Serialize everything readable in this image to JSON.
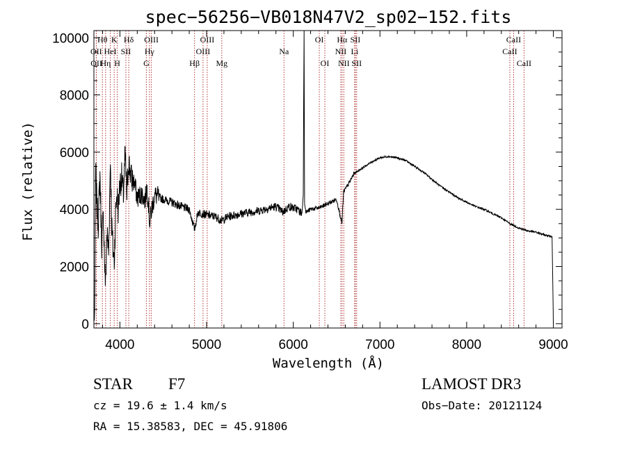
{
  "chart_data": {
    "type": "line",
    "title": "spec−56256−VB018N47V2_sp02−152.fits",
    "xlabel": "Wavelength (Å)",
    "ylabel": "Flux (relative)",
    "xlim": [
      3700,
      9100
    ],
    "ylim": [
      -150,
      10250
    ],
    "x_ticks": [
      4000,
      5000,
      6000,
      7000,
      8000,
      9000
    ],
    "y_ticks": [
      0,
      2000,
      4000,
      6000,
      8000,
      10000
    ],
    "series": [
      {
        "name": "flux",
        "anchors": [
          [
            3705,
            0
          ],
          [
            3712,
            1500
          ],
          [
            3720,
            5500
          ],
          [
            3735,
            4100
          ],
          [
            3750,
            3500
          ],
          [
            3770,
            5200
          ],
          [
            3790,
            2800
          ],
          [
            3810,
            3800
          ],
          [
            3825,
            2000
          ],
          [
            3835,
            1300
          ],
          [
            3850,
            3200
          ],
          [
            3870,
            2500
          ],
          [
            3890,
            5800
          ],
          [
            3905,
            3500
          ],
          [
            3920,
            2600
          ],
          [
            3935,
            2200
          ],
          [
            3950,
            3800
          ],
          [
            3965,
            4600
          ],
          [
            3980,
            4000
          ],
          [
            4000,
            4900
          ],
          [
            4020,
            5100
          ],
          [
            4040,
            4500
          ],
          [
            4060,
            5900
          ],
          [
            4080,
            4500
          ],
          [
            4100,
            5700
          ],
          [
            4130,
            5100
          ],
          [
            4170,
            4900
          ],
          [
            4200,
            4400
          ],
          [
            4250,
            4550
          ],
          [
            4290,
            4300
          ],
          [
            4310,
            4800
          ],
          [
            4330,
            4200
          ],
          [
            4345,
            3500
          ],
          [
            4360,
            3900
          ],
          [
            4400,
            4500
          ],
          [
            4500,
            4350
          ],
          [
            4600,
            4250
          ],
          [
            4700,
            4100
          ],
          [
            4800,
            4000
          ],
          [
            4861,
            3300
          ],
          [
            4900,
            3900
          ],
          [
            5000,
            3800
          ],
          [
            5100,
            3750
          ],
          [
            5175,
            3600
          ],
          [
            5250,
            3750
          ],
          [
            5400,
            3850
          ],
          [
            5600,
            3950
          ],
          [
            5800,
            4100
          ],
          [
            5880,
            3900
          ],
          [
            5950,
            4100
          ],
          [
            6050,
            4000
          ],
          [
            6100,
            3850
          ],
          [
            6115,
            4500
          ],
          [
            6120,
            7800
          ],
          [
            6125,
            10250
          ],
          [
            6130,
            4200
          ],
          [
            6145,
            3900
          ],
          [
            6200,
            4000
          ],
          [
            6300,
            4050
          ],
          [
            6400,
            4200
          ],
          [
            6500,
            4350
          ],
          [
            6562,
            3500
          ],
          [
            6580,
            4600
          ],
          [
            6650,
            4950
          ],
          [
            6700,
            5250
          ],
          [
            6800,
            5450
          ],
          [
            6900,
            5650
          ],
          [
            7000,
            5800
          ],
          [
            7100,
            5850
          ],
          [
            7200,
            5800
          ],
          [
            7300,
            5700
          ],
          [
            7400,
            5500
          ],
          [
            7500,
            5300
          ],
          [
            7600,
            5050
          ],
          [
            7700,
            4800
          ],
          [
            7800,
            4600
          ],
          [
            7900,
            4400
          ],
          [
            8000,
            4250
          ],
          [
            8100,
            4100
          ],
          [
            8200,
            4000
          ],
          [
            8300,
            3850
          ],
          [
            8400,
            3700
          ],
          [
            8500,
            3500
          ],
          [
            8600,
            3350
          ],
          [
            8700,
            3250
          ],
          [
            8800,
            3200
          ],
          [
            8900,
            3100
          ],
          [
            8985,
            3050
          ],
          [
            8998,
            500
          ],
          [
            9000,
            0
          ]
        ]
      }
    ],
    "spectral_lines": [
      {
        "label": "Hθ",
        "wavelength": 3798,
        "row": 1
      },
      {
        "label": "OII",
        "wavelength": 3727,
        "row": 2
      },
      {
        "label": "OII",
        "wavelength": 3729,
        "row": 3
      },
      {
        "label": "Hη",
        "wavelength": 3835,
        "row": 3
      },
      {
        "label": "HeI",
        "wavelength": 3889,
        "row": 2
      },
      {
        "label": "K",
        "wavelength": 3934,
        "row": 1
      },
      {
        "label": "SII",
        "wavelength": 4069,
        "row": 2
      },
      {
        "label": "H",
        "wavelength": 3969,
        "row": 3
      },
      {
        "label": "Hδ",
        "wavelength": 4102,
        "row": 1
      },
      {
        "label": "G",
        "wavelength": 4305,
        "row": 3
      },
      {
        "label": "Hγ",
        "wavelength": 4341,
        "row": 2
      },
      {
        "label": "OIII",
        "wavelength": 4363,
        "row": 1
      },
      {
        "label": "Hβ",
        "wavelength": 4861,
        "row": 3
      },
      {
        "label": "OIII",
        "wavelength": 4959,
        "row": 2
      },
      {
        "label": "OIII",
        "wavelength": 5007,
        "row": 1
      },
      {
        "label": "Mg",
        "wavelength": 5175,
        "row": 3
      },
      {
        "label": "Na",
        "wavelength": 5893,
        "row": 2
      },
      {
        "label": "OI",
        "wavelength": 6300,
        "row": 1
      },
      {
        "label": "OI",
        "wavelength": 6364,
        "row": 3
      },
      {
        "label": "NII",
        "wavelength": 6548,
        "row": 2
      },
      {
        "label": "Hα",
        "wavelength": 6563,
        "row": 1
      },
      {
        "label": "NII",
        "wavelength": 6583,
        "row": 3
      },
      {
        "label": "Li",
        "wavelength": 6708,
        "row": 2
      },
      {
        "label": "SII",
        "wavelength": 6716,
        "row": 1
      },
      {
        "label": "SII",
        "wavelength": 6731,
        "row": 3
      },
      {
        "label": "CaII",
        "wavelength": 8498,
        "row": 2
      },
      {
        "label": "CaII",
        "wavelength": 8542,
        "row": 1
      },
      {
        "label": "CaII",
        "wavelength": 8662,
        "row": 3
      }
    ]
  },
  "info": {
    "object_class": "STAR",
    "subclass": "F7",
    "redshift_text": "cz = 19.6 ± 1.4 km/s",
    "coords_text": "RA =  15.38583, DEC =  45.91806",
    "survey": "LAMOST DR3",
    "obs_date_text": "Obs−Date: 20121124"
  },
  "colors": {
    "line": "#000000",
    "axes": "#000000",
    "marker": "#b03030"
  }
}
